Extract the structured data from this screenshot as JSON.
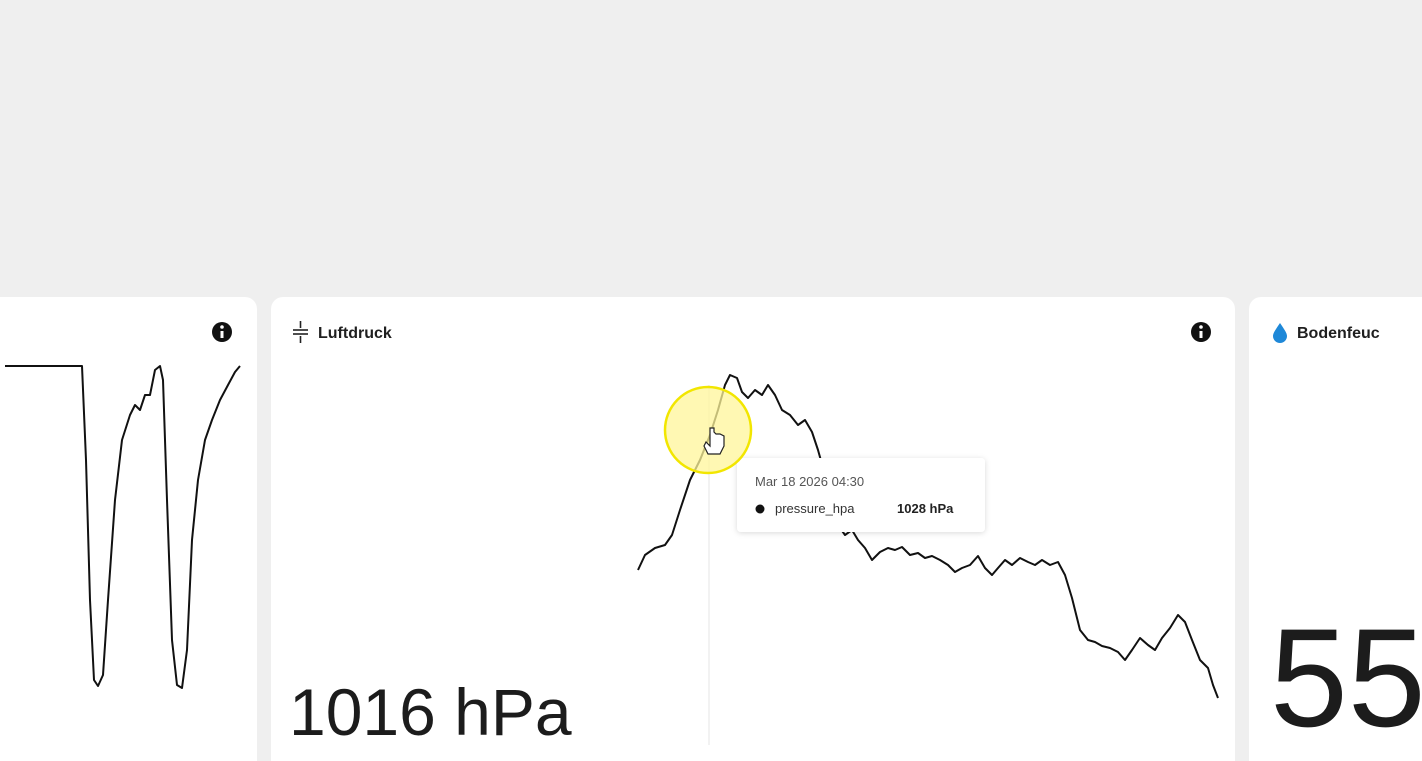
{
  "cards": [
    {
      "title": "Luftdruck",
      "value": "1016 hPa",
      "tooltip": {
        "time": "Mar 18 2026 04:30",
        "series": "pressure_hpa",
        "value": "1028 hPa"
      }
    },
    {
      "title": "Bodenfeuc",
      "value": "55"
    }
  ]
}
